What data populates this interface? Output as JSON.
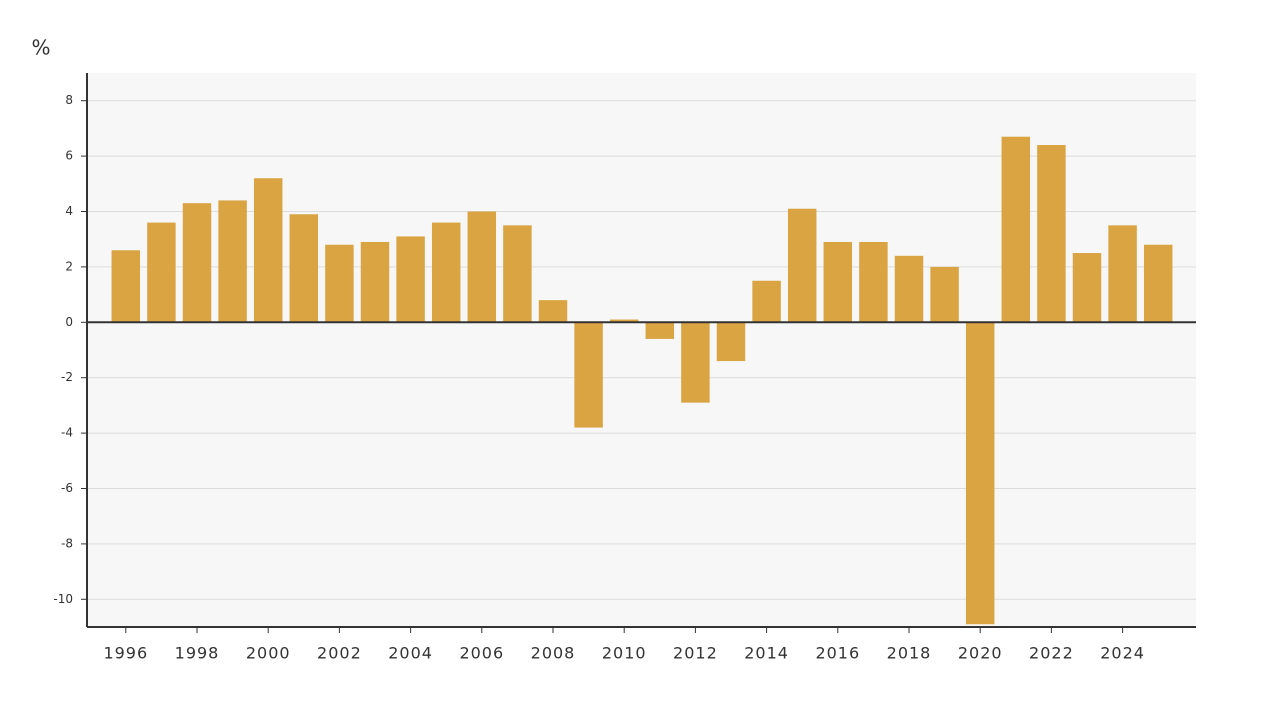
{
  "chart_data": {
    "type": "bar",
    "y_label": "%",
    "categories": [
      "1996",
      null,
      "1998",
      null,
      "2000",
      null,
      "2002",
      null,
      "2004",
      null,
      "2006",
      null,
      "2008",
      null,
      "2010",
      null,
      "2012",
      null,
      "2014",
      null,
      "2016",
      null,
      "2018",
      null,
      "2020",
      null,
      "2022",
      null,
      "2024",
      null
    ],
    "values": [
      2.6,
      3.6,
      4.3,
      4.4,
      5.2,
      3.9,
      2.8,
      2.9,
      3.1,
      3.6,
      4.0,
      3.5,
      0.8,
      -3.8,
      0.1,
      -0.6,
      -2.9,
      -1.4,
      1.5,
      4.1,
      2.9,
      2.9,
      2.4,
      2.0,
      -10.9,
      6.7,
      6.4,
      2.5,
      3.5,
      2.8
    ],
    "color": "#d9a441",
    "ylim": [
      -11,
      9
    ],
    "yticks": [
      -10,
      -8,
      -6,
      -4,
      -2,
      0,
      2,
      4,
      6,
      8
    ],
    "grid": true
  }
}
